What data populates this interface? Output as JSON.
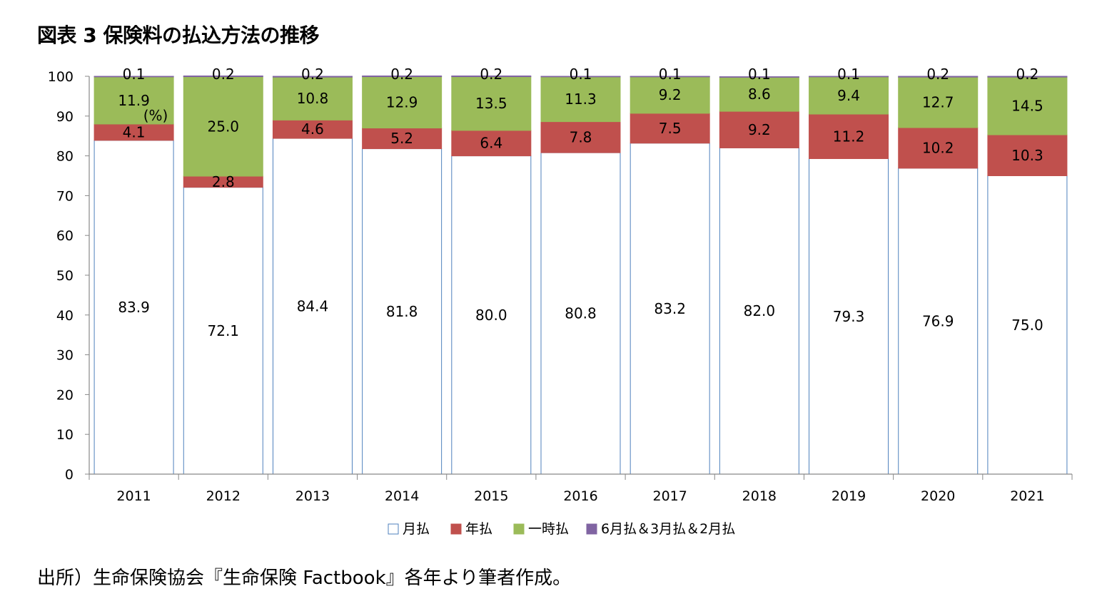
{
  "title": "図表 3 保険料の払込方法の推移",
  "source": "出所）生命保険協会『生命保険 Factbook』各年より筆者作成。",
  "chart_data": {
    "type": "bar",
    "stacked": true,
    "title": "図表 3 保険料の払込方法の推移",
    "unit_label": "(%)",
    "categories": [
      "2011",
      "2012",
      "2013",
      "2014",
      "2015",
      "2016",
      "2017",
      "2018",
      "2019",
      "2020",
      "2021"
    ],
    "ylim": [
      0,
      100
    ],
    "yticks": [
      0,
      10,
      20,
      30,
      40,
      50,
      60,
      70,
      80,
      90,
      100
    ],
    "series": [
      {
        "name": "月払",
        "color": "#ffffff",
        "stroke": "#4f81bd",
        "values": [
          83.9,
          72.1,
          84.4,
          81.8,
          80.0,
          80.8,
          83.2,
          82.0,
          79.3,
          76.9,
          75.0
        ]
      },
      {
        "name": "年払",
        "color": "#c0504d",
        "stroke": "#c0504d",
        "values": [
          4.1,
          2.8,
          4.6,
          5.2,
          6.4,
          7.8,
          7.5,
          9.2,
          11.2,
          10.2,
          10.3
        ]
      },
      {
        "name": "一時払",
        "color": "#9bbb59",
        "stroke": "#9bbb59",
        "values": [
          11.9,
          25.0,
          10.8,
          12.9,
          13.5,
          11.3,
          9.2,
          8.6,
          9.4,
          12.7,
          14.5
        ]
      },
      {
        "name": "6月払＆3月払＆2月払",
        "color": "#8064a2",
        "stroke": "#8064a2",
        "values": [
          0.1,
          0.2,
          0.2,
          0.2,
          0.2,
          0.1,
          0.1,
          0.1,
          0.1,
          0.2,
          0.2
        ]
      }
    ],
    "data_labels": [
      [
        "83.9",
        "72.1",
        "84.4",
        "81.8",
        "80.0",
        "80.8",
        "83.2",
        "82.0",
        "79.3",
        "76.9",
        "75.0"
      ],
      [
        "4.1",
        "2.8",
        "4.6",
        "5.2",
        "6.4",
        "7.8",
        "7.5",
        "9.2",
        "11.2",
        "10.2",
        "10.3"
      ],
      [
        "11.9",
        "25.0",
        "10.8",
        "12.9",
        "13.5",
        "11.3",
        "9.2",
        "8.6",
        "9.4",
        "12.7",
        "14.5"
      ],
      [
        "0.1",
        "0.2",
        "0.2",
        "0.2",
        "0.2",
        "0.1",
        "0.1",
        "0.1",
        "0.1",
        "0.2",
        "0.2"
      ]
    ],
    "legend_position": "bottom",
    "grid": false
  }
}
